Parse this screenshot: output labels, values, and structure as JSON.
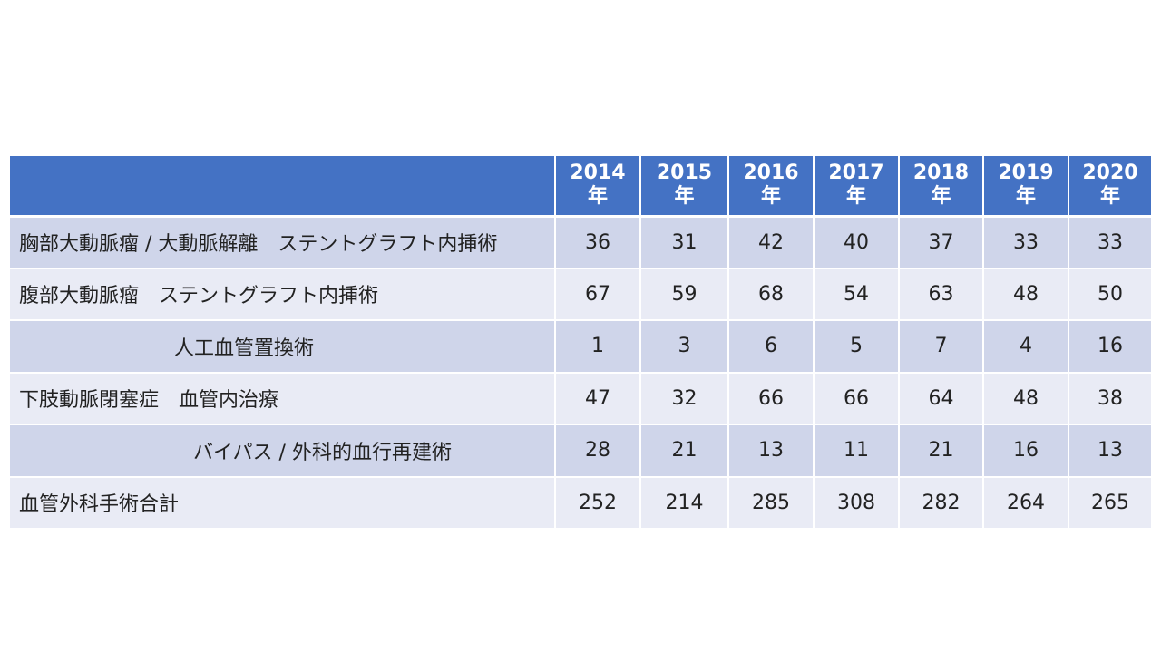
{
  "table": {
    "columns": [
      {
        "year": "2014",
        "suffix": "年"
      },
      {
        "year": "2015",
        "suffix": "年"
      },
      {
        "year": "2016",
        "suffix": "年"
      },
      {
        "year": "2017",
        "suffix": "年"
      },
      {
        "year": "2018",
        "suffix": "年"
      },
      {
        "year": "2019",
        "suffix": "年"
      },
      {
        "year": "2020",
        "suffix": "年"
      }
    ],
    "rows": [
      {
        "label": "胸部大動脈瘤 / 大動脈解離　ステントグラフト内挿術",
        "values": [
          "36",
          "31",
          "42",
          "40",
          "37",
          "33",
          "33"
        ]
      },
      {
        "label": "腹部大動脈瘤　ステントグラフト内挿術",
        "values": [
          "67",
          "59",
          "68",
          "54",
          "63",
          "48",
          "50"
        ]
      },
      {
        "label": "人工血管置換術",
        "values": [
          "1",
          "3",
          "6",
          "5",
          "7",
          "4",
          "16"
        ]
      },
      {
        "label": "下肢動脈閉塞症　血管内治療",
        "values": [
          "47",
          "32",
          "66",
          "66",
          "64",
          "48",
          "38"
        ]
      },
      {
        "label": "バイパス / 外科的血行再建術",
        "values": [
          "28",
          "21",
          "13",
          "11",
          "21",
          "16",
          "13"
        ]
      },
      {
        "label": "血管外科手術合計",
        "values": [
          "252",
          "214",
          "285",
          "308",
          "282",
          "264",
          "265"
        ]
      }
    ]
  },
  "colors": {
    "header_bg": "#4472c4",
    "row_dark": "#cfd5ea",
    "row_light": "#e9ebf5"
  }
}
